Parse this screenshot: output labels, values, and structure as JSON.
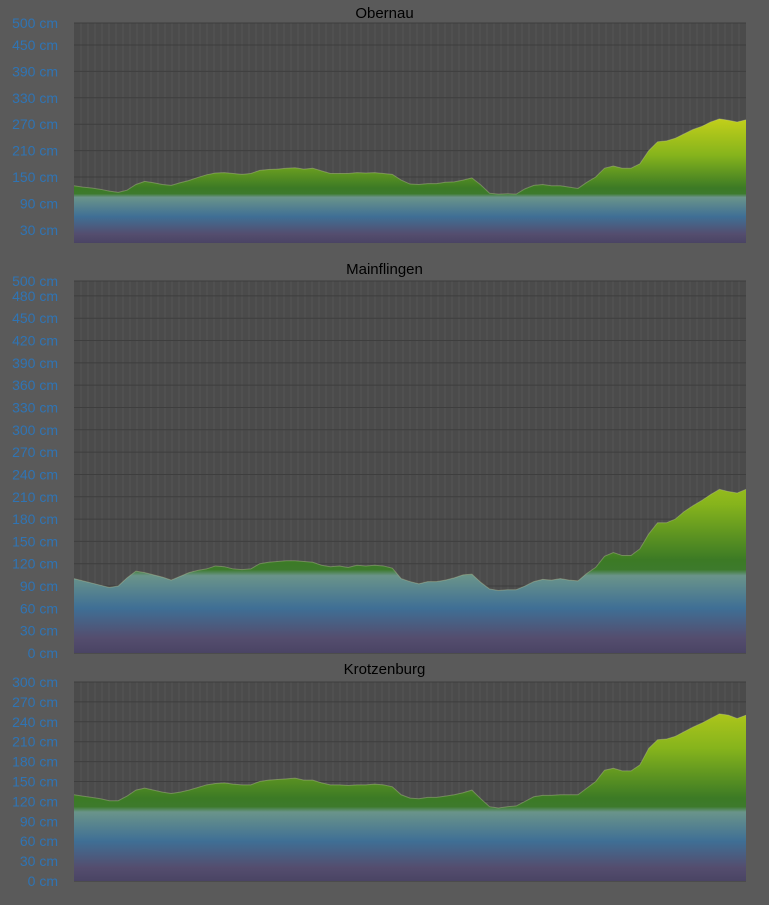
{
  "chart_data": [
    {
      "type": "area",
      "title": "Obernau",
      "unit": "cm",
      "ylim": [
        0,
        500
      ],
      "y_ticks": [
        "500 cm",
        "450 cm",
        "390 cm",
        "330 cm",
        "270 cm",
        "210 cm",
        "150 cm",
        "90 cm",
        "30 cm"
      ],
      "y_tick_values": [
        500,
        450,
        390,
        330,
        270,
        210,
        150,
        90,
        30
      ],
      "grid": true,
      "series": [
        {
          "values": [
            130,
            127,
            125,
            122,
            118,
            115,
            120,
            133,
            140,
            137,
            133,
            131,
            137,
            142,
            149,
            155,
            159,
            160,
            158,
            156,
            158,
            165,
            167,
            168,
            170,
            171,
            168,
            170,
            164,
            158,
            158,
            158,
            160,
            159,
            160,
            158,
            156,
            143,
            134,
            133,
            135,
            135,
            138,
            139,
            143,
            148,
            132,
            113,
            111,
            112,
            111,
            123,
            131,
            133,
            130,
            130,
            127,
            124,
            138,
            150,
            170,
            175,
            170,
            170,
            180,
            210,
            230,
            232,
            238,
            248,
            258,
            265,
            275,
            282,
            279,
            275,
            280
          ]
        }
      ]
    },
    {
      "type": "area",
      "title": "Mainflingen",
      "unit": "cm",
      "ylim": [
        0,
        500
      ],
      "y_ticks": [
        "500 cm",
        "480 cm",
        "450 cm",
        "420 cm",
        "390 cm",
        "360 cm",
        "330 cm",
        "300 cm",
        "270 cm",
        "240 cm",
        "210 cm",
        "180 cm",
        "150 cm",
        "120 cm",
        "90 cm",
        "60 cm",
        "30 cm",
        "0 cm"
      ],
      "y_tick_values": [
        500,
        480,
        450,
        420,
        390,
        360,
        330,
        300,
        270,
        240,
        210,
        180,
        150,
        120,
        90,
        60,
        30,
        0
      ],
      "grid": true,
      "series": [
        {
          "values": [
            100,
            97,
            94,
            91,
            88,
            90,
            101,
            110,
            108,
            105,
            102,
            98,
            103,
            108,
            111,
            113,
            117,
            116,
            113,
            112,
            113,
            120,
            122,
            123,
            124,
            124,
            123,
            122,
            118,
            116,
            117,
            115,
            118,
            117,
            118,
            117,
            114,
            100,
            96,
            93,
            96,
            96,
            98,
            101,
            105,
            106,
            95,
            86,
            84,
            85,
            85,
            90,
            96,
            99,
            98,
            100,
            98,
            97,
            107,
            115,
            130,
            135,
            131,
            131,
            140,
            160,
            175,
            175,
            180,
            190,
            198,
            205,
            213,
            220,
            217,
            215,
            220
          ]
        }
      ]
    },
    {
      "type": "area",
      "title": "Krotzenburg",
      "unit": "cm",
      "ylim": [
        0,
        300
      ],
      "y_ticks": [
        "300 cm",
        "270 cm",
        "240 cm",
        "210 cm",
        "180 cm",
        "150 cm",
        "120 cm",
        "90 cm",
        "60 cm",
        "30 cm",
        "0 cm"
      ],
      "y_tick_values": [
        300,
        270,
        240,
        210,
        180,
        150,
        120,
        90,
        60,
        30,
        0
      ],
      "grid": true,
      "series": [
        {
          "values": [
            130,
            128,
            126,
            124,
            121,
            121,
            128,
            137,
            140,
            137,
            134,
            132,
            134,
            137,
            141,
            145,
            147,
            148,
            146,
            145,
            145,
            150,
            152,
            153,
            154,
            155,
            152,
            152,
            148,
            145,
            145,
            144,
            145,
            145,
            146,
            145,
            142,
            130,
            125,
            124,
            126,
            126,
            128,
            130,
            133,
            137,
            124,
            112,
            110,
            112,
            113,
            120,
            127,
            129,
            129,
            130,
            130,
            130,
            140,
            150,
            167,
            170,
            166,
            166,
            175,
            200,
            213,
            214,
            218,
            225,
            232,
            238,
            245,
            252,
            250,
            245,
            250
          ]
        }
      ]
    }
  ]
}
